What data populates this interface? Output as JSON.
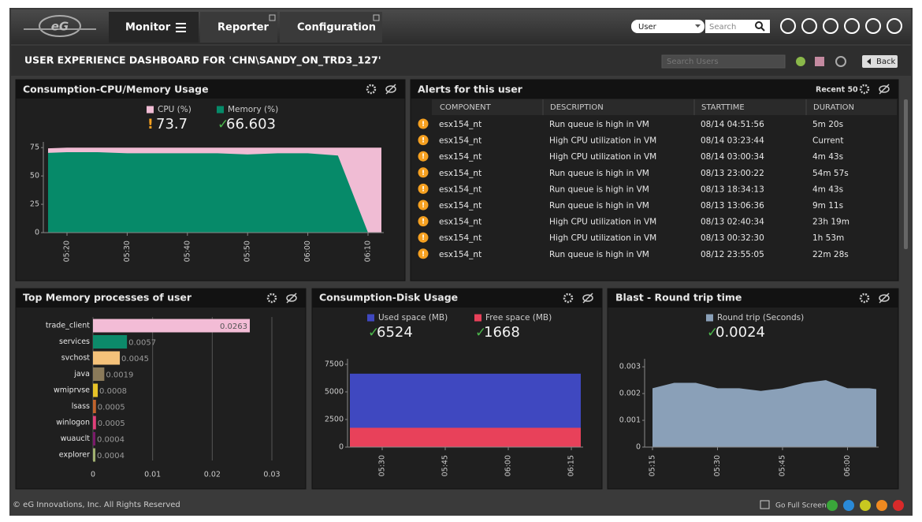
{
  "nav": {
    "tabs": [
      "Monitor",
      "Reporter",
      "Configuration"
    ],
    "user_filter": "User",
    "search": "Search"
  },
  "header": {
    "title": "USER EXPERIENCE DASHBOARD FOR 'CHN\\SANDY_ON_TRD3_127'",
    "search_users": "Search Users",
    "back": "Back"
  },
  "alerts": {
    "title": "Alerts for this user",
    "recent": "Recent 50",
    "columns": [
      "COMPONENT",
      "DESCRIPTION",
      "STARTTIME",
      "DURATION"
    ],
    "rows": [
      [
        "esx154_nt",
        "Run queue is high in VM",
        "08/14  04:51:56",
        "5m 20s"
      ],
      [
        "esx154_nt",
        "High CPU utilization in VM",
        "08/14  03:23:44",
        "Current"
      ],
      [
        "esx154_nt",
        "High CPU utilization in VM",
        "08/14  03:00:34",
        "4m 43s"
      ],
      [
        "esx154_nt",
        "Run queue is high in VM",
        "08/13  23:00:22",
        "54m 57s"
      ],
      [
        "esx154_nt",
        "Run queue is high in VM",
        "08/13  18:34:13",
        "4m 43s"
      ],
      [
        "esx154_nt",
        "Run queue is high in VM",
        "08/13  13:06:36",
        "9m 11s"
      ],
      [
        "esx154_nt",
        "High CPU utilization in VM",
        "08/13  02:40:34",
        "23h 19m"
      ],
      [
        "esx154_nt",
        "High CPU utilization in VM",
        "08/13  00:32:30",
        "1h 53m"
      ],
      [
        "esx154_nt",
        "Run queue is high in VM",
        "08/12  23:55:05",
        "22m 28s"
      ]
    ]
  },
  "footer": {
    "copyright": "© eG Innovations, Inc. All Rights Reserved",
    "full_screen": "Go Full Screen"
  },
  "chart_data": [
    {
      "type": "area",
      "title": "Consumption-CPU/Memory Usage",
      "categories": [
        null,
        "05:20",
        null,
        "05:30",
        null,
        "05:40",
        null,
        "05:50",
        null,
        "06:00",
        null,
        "06:10",
        null
      ],
      "series": [
        {
          "name": "CPU (%)",
          "color": "#f0bcd4",
          "current": 73.7,
          "values": [
            74,
            75,
            75,
            75,
            75,
            75,
            75,
            75,
            75,
            75,
            75,
            75,
            75
          ]
        },
        {
          "name": "Memory (%)",
          "color": "#068a69",
          "current": 66.603,
          "values": [
            70,
            71,
            71,
            70,
            70,
            70,
            70,
            69,
            70,
            70,
            68,
            0,
            0
          ]
        }
      ],
      "ylim": [
        0,
        80
      ],
      "yticks": [
        0,
        25,
        50,
        75
      ]
    },
    {
      "type": "hbar",
      "title": "Top Memory processes of user",
      "categories": [
        "trade_client",
        "services",
        "svchost",
        "java",
        "wmiprvse",
        "lsass",
        "winlogon",
        "wuauclt",
        "explorer"
      ],
      "values": [
        0.0263,
        0.0057,
        0.0045,
        0.0019,
        0.0008,
        0.0005,
        0.0005,
        0.0004,
        0.0004
      ],
      "colors": [
        "#f3bcd6",
        "#0c8a6a",
        "#f5c27a",
        "#8a7a5a",
        "#e6c228",
        "#c0622c",
        "#e0407a",
        "#7a1a6a",
        "#a0b070"
      ],
      "xlim": [
        0,
        0.03
      ],
      "xticks": [
        0,
        0.01,
        0.02,
        0.03
      ],
      "grid": true
    },
    {
      "type": "area",
      "title": "Consumption-Disk Usage",
      "categories": [
        null,
        null,
        "05:30",
        null,
        null,
        "05:45",
        null,
        null,
        "06:00",
        null,
        null,
        "06:15",
        null
      ],
      "series": [
        {
          "name": "Used space (MB)",
          "color": "#3f48c0",
          "current": 6524,
          "values": [
            6650,
            6650,
            6650,
            6650,
            6650,
            6650,
            6650,
            6650,
            6650,
            6650,
            6650,
            6650,
            6650
          ]
        },
        {
          "name": "Free space (MB)",
          "color": "#e8415a",
          "current": 1668,
          "values": [
            1750,
            1750,
            1750,
            1750,
            1750,
            1750,
            1750,
            1750,
            1750,
            1750,
            1750,
            1750,
            1750
          ]
        }
      ],
      "ylim": [
        0,
        8000
      ],
      "yticks": [
        0,
        2500,
        5000,
        7500
      ]
    },
    {
      "type": "area",
      "title": "Blast - Round trip time",
      "categories": [
        "05:15",
        null,
        null,
        "05:30",
        null,
        null,
        "05:45",
        null,
        null,
        "06:00",
        null,
        null
      ],
      "series": [
        {
          "name": "Round trip (Seconds)",
          "color": "#8aa0b8",
          "current": 0.0024,
          "values": [
            0.0022,
            0.0024,
            0.0024,
            0.0022,
            0.0022,
            0.0021,
            0.0022,
            0.0024,
            0.0025,
            0.0022,
            0.0022,
            0.0021
          ]
        }
      ],
      "ylim": [
        0,
        0.0033
      ],
      "yticks": [
        0,
        0.001,
        0.002,
        0.003
      ]
    }
  ]
}
